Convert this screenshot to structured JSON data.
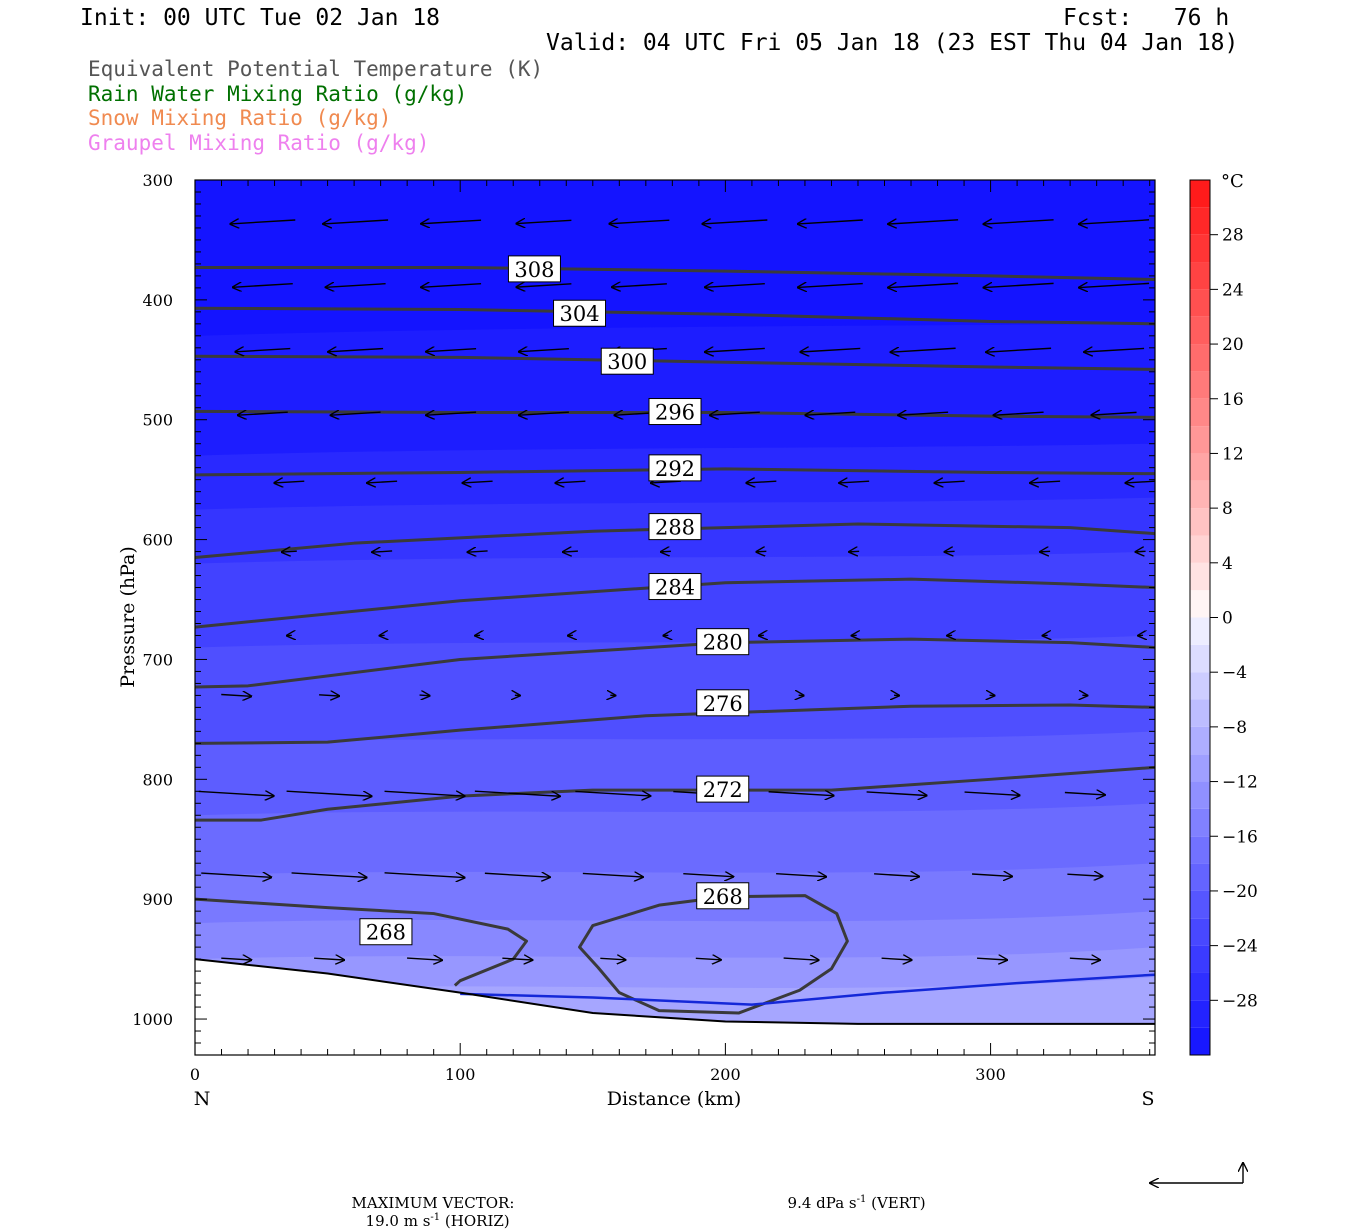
{
  "header": {
    "init": "Init: 00 UTC Tue 02 Jan 18",
    "fcst": "Fcst:   76 h",
    "valid": "Valid: 04 UTC Fri 05 Jan 18 (23 EST Thu 04 Jan 18)"
  },
  "legend": [
    {
      "label": "Equivalent Potential Temperature (K)",
      "color": "#555555"
    },
    {
      "label": "Rain Water Mixing Ratio (g/kg)",
      "color": "#007000"
    },
    {
      "label": "Snow Mixing Ratio (g/kg)",
      "color": "#f08a50"
    },
    {
      "label": "Graupel Mixing Ratio (g/kg)",
      "color": "#ee80ee"
    }
  ],
  "footer": {
    "max_vector_label": "MAXIMUM VECTOR:",
    "horiz_value": "19.0 m s",
    "horiz_unit_suffix": " (HORIZ)",
    "vert_value": "9.4 dPa s",
    "vert_unit_suffix": " (VERT)",
    "superscript": "-1"
  },
  "chart_data": {
    "type": "cross-section",
    "xlabel": "Distance (km)",
    "ylabel": "Pressure (hPa)",
    "xlim": [
      0,
      362
    ],
    "ylim": [
      1030,
      300
    ],
    "x_ticks": [
      0,
      100,
      200,
      300
    ],
    "y_ticks": [
      300,
      400,
      500,
      600,
      700,
      800,
      900,
      1000
    ],
    "x_end_labels": {
      "left": "N",
      "right": "S"
    },
    "colorbar": {
      "unit": "°C",
      "labels": [
        "28",
        "24",
        "20",
        "16",
        "12",
        "8",
        "4",
        "0",
        "−4",
        "−8",
        "−12",
        "−16",
        "−20",
        "−24",
        "−28"
      ],
      "label_values": [
        28,
        24,
        20,
        16,
        12,
        8,
        4,
        0,
        -4,
        -8,
        -12,
        -16,
        -20,
        -24,
        -28
      ],
      "range": [
        -32,
        32
      ],
      "step": 2
    },
    "theta_e_contours": [
      {
        "label": "308",
        "label_at": [
          128,
          375
        ],
        "points": [
          [
            0,
            373
          ],
          [
            100,
            373
          ],
          [
            200,
            376
          ],
          [
            300,
            380
          ],
          [
            362,
            383
          ]
        ]
      },
      {
        "label": "304",
        "label_at": [
          145,
          412
        ],
        "points": [
          [
            0,
            407
          ],
          [
            100,
            408
          ],
          [
            200,
            412
          ],
          [
            300,
            418
          ],
          [
            362,
            420
          ]
        ]
      },
      {
        "label": "300",
        "label_at": [
          163,
          452
        ],
        "points": [
          [
            0,
            447
          ],
          [
            100,
            448
          ],
          [
            200,
            452
          ],
          [
            300,
            456
          ],
          [
            362,
            458
          ]
        ]
      },
      {
        "label": "296",
        "label_at": [
          181,
          494
        ],
        "points": [
          [
            0,
            493
          ],
          [
            100,
            494
          ],
          [
            200,
            494
          ],
          [
            300,
            497
          ],
          [
            362,
            498
          ]
        ]
      },
      {
        "label": "292",
        "label_at": [
          181,
          541
        ],
        "points": [
          [
            0,
            546
          ],
          [
            100,
            544
          ],
          [
            200,
            541
          ],
          [
            300,
            544
          ],
          [
            362,
            545
          ]
        ]
      },
      {
        "label": "288",
        "label_at": [
          181,
          590
        ],
        "points": [
          [
            0,
            615
          ],
          [
            60,
            603
          ],
          [
            150,
            593
          ],
          [
            250,
            587
          ],
          [
            330,
            590
          ],
          [
            362,
            595
          ]
        ]
      },
      {
        "label": "284",
        "label_at": [
          181,
          640
        ],
        "points": [
          [
            0,
            673
          ],
          [
            100,
            651
          ],
          [
            200,
            636
          ],
          [
            270,
            633
          ],
          [
            330,
            637
          ],
          [
            362,
            640
          ]
        ]
      },
      {
        "label": "280",
        "label_at": [
          199,
          686
        ],
        "points": [
          [
            0,
            723
          ],
          [
            20,
            722
          ],
          [
            100,
            700
          ],
          [
            200,
            686
          ],
          [
            270,
            683
          ],
          [
            330,
            686
          ],
          [
            362,
            690
          ]
        ]
      },
      {
        "label": "276",
        "label_at": [
          199,
          737
        ],
        "points": [
          [
            0,
            770
          ],
          [
            50,
            769
          ],
          [
            100,
            759
          ],
          [
            170,
            747
          ],
          [
            270,
            739
          ],
          [
            330,
            738
          ],
          [
            362,
            740
          ]
        ]
      },
      {
        "label": "272",
        "label_at": [
          199,
          809
        ],
        "points": [
          [
            0,
            834
          ],
          [
            25,
            834
          ],
          [
            50,
            825
          ],
          [
            100,
            814
          ],
          [
            150,
            809
          ],
          [
            200,
            809
          ],
          [
            240,
            809
          ],
          [
            300,
            800
          ],
          [
            362,
            790
          ]
        ]
      },
      {
        "label": "268",
        "label_at": [
          72,
          928
        ],
        "points": [
          [
            0,
            900
          ],
          [
            50,
            907
          ],
          [
            90,
            912
          ],
          [
            118,
            925
          ],
          [
            125,
            935
          ],
          [
            120,
            950
          ],
          [
            100,
            968
          ],
          [
            98,
            972
          ]
        ]
      },
      {
        "label": "268",
        "label_at": [
          199,
          898
        ],
        "points": [
          [
            152,
            957
          ],
          [
            145,
            940
          ],
          [
            150,
            922
          ],
          [
            175,
            905
          ],
          [
            200,
            898
          ],
          [
            230,
            897
          ],
          [
            242,
            912
          ],
          [
            246,
            935
          ],
          [
            240,
            958
          ],
          [
            228,
            976
          ],
          [
            205,
            995
          ],
          [
            175,
            993
          ],
          [
            160,
            978
          ],
          [
            152,
            957
          ]
        ]
      }
    ],
    "freezing_line": {
      "color": "#1428d8",
      "points": [
        [
          100,
          979
        ],
        [
          150,
          982
        ],
        [
          210,
          988
        ],
        [
          260,
          978
        ],
        [
          310,
          970
        ],
        [
          362,
          963
        ]
      ]
    },
    "terrain": {
      "points": [
        [
          0,
          950
        ],
        [
          50,
          962
        ],
        [
          100,
          978
        ],
        [
          150,
          995
        ],
        [
          200,
          1002
        ],
        [
          250,
          1004
        ],
        [
          300,
          1004
        ],
        [
          362,
          1004
        ]
      ]
    },
    "wind_rows": [
      {
        "p": 335,
        "arrows": [
          {
            "x": 15,
            "u": -13
          },
          {
            "x": 50,
            "u": -13
          },
          {
            "x": 86,
            "u": -12
          },
          {
            "x": 121,
            "u": -11
          },
          {
            "x": 157,
            "u": -12
          },
          {
            "x": 193,
            "u": -13
          },
          {
            "x": 229,
            "u": -13
          },
          {
            "x": 264,
            "u": -14
          },
          {
            "x": 300,
            "u": -14
          },
          {
            "x": 336,
            "u": -14
          }
        ]
      },
      {
        "p": 388,
        "arrows": [
          {
            "x": 15,
            "u": -12
          },
          {
            "x": 50,
            "u": -12
          },
          {
            "x": 86,
            "u": -12
          },
          {
            "x": 121,
            "u": -11
          },
          {
            "x": 157,
            "u": -11
          },
          {
            "x": 193,
            "u": -12
          },
          {
            "x": 229,
            "u": -13
          },
          {
            "x": 264,
            "u": -14
          },
          {
            "x": 300,
            "u": -14
          },
          {
            "x": 336,
            "u": -14
          }
        ]
      },
      {
        "p": 442,
        "arrows": [
          {
            "x": 15,
            "u": -11
          },
          {
            "x": 50,
            "u": -11
          },
          {
            "x": 86,
            "u": -10
          },
          {
            "x": 121,
            "u": -10
          },
          {
            "x": 157,
            "u": -11
          },
          {
            "x": 193,
            "u": -12
          },
          {
            "x": 229,
            "u": -12
          },
          {
            "x": 264,
            "u": -13
          },
          {
            "x": 300,
            "u": -13
          },
          {
            "x": 336,
            "u": -12
          }
        ]
      },
      {
        "p": 495,
        "arrows": [
          {
            "x": 15,
            "u": -10
          },
          {
            "x": 50,
            "u": -10
          },
          {
            "x": 86,
            "u": -10
          },
          {
            "x": 121,
            "u": -10
          },
          {
            "x": 157,
            "u": -10
          },
          {
            "x": 193,
            "u": -10
          },
          {
            "x": 229,
            "u": -10
          },
          {
            "x": 264,
            "u": -10
          },
          {
            "x": 300,
            "u": -10
          },
          {
            "x": 336,
            "u": -9
          }
        ]
      },
      {
        "p": 552,
        "arrows": [
          {
            "x": 25,
            "u": -6
          },
          {
            "x": 60,
            "u": -6
          },
          {
            "x": 96,
            "u": -6
          },
          {
            "x": 131,
            "u": -6
          },
          {
            "x": 167,
            "u": -6
          },
          {
            "x": 203,
            "u": -6
          },
          {
            "x": 238,
            "u": -6
          },
          {
            "x": 274,
            "u": -6
          },
          {
            "x": 310,
            "u": -6
          },
          {
            "x": 346,
            "u": -6
          }
        ]
      },
      {
        "p": 610,
        "arrows": [
          {
            "x": 25,
            "u": -3
          },
          {
            "x": 60,
            "u": -4
          },
          {
            "x": 96,
            "u": -4
          },
          {
            "x": 131,
            "u": -3
          },
          {
            "x": 167,
            "u": -2
          },
          {
            "x": 203,
            "u": -2
          },
          {
            "x": 238,
            "u": -2
          },
          {
            "x": 274,
            "u": -2
          },
          {
            "x": 310,
            "u": -2
          },
          {
            "x": 346,
            "u": -2
          }
        ]
      },
      {
        "p": 680,
        "arrows": [
          {
            "x": 25,
            "u": -1
          },
          {
            "x": 60,
            "u": -1
          },
          {
            "x": 96,
            "u": -1
          },
          {
            "x": 131,
            "u": -1
          },
          {
            "x": 167,
            "u": -1
          },
          {
            "x": 203,
            "u": -1
          },
          {
            "x": 238,
            "u": -1
          },
          {
            "x": 274,
            "u": -1
          },
          {
            "x": 310,
            "u": -1
          },
          {
            "x": 346,
            "u": -1
          }
        ]
      },
      {
        "p": 730,
        "arrows": [
          {
            "x": 5,
            "u": 6
          },
          {
            "x": 40,
            "u": 4
          },
          {
            "x": 76,
            "u": 2
          },
          {
            "x": 111,
            "u": 1
          },
          {
            "x": 147,
            "u": 1
          },
          {
            "x": 183,
            "u": 1
          },
          {
            "x": 218,
            "u": 1
          },
          {
            "x": 254,
            "u": 1
          },
          {
            "x": 290,
            "u": 1
          },
          {
            "x": 325,
            "u": 1
          }
        ]
      },
      {
        "p": 812,
        "arrows": [
          {
            "x": 5,
            "u": 15
          },
          {
            "x": 40,
            "u": 17
          },
          {
            "x": 76,
            "u": 16
          },
          {
            "x": 111,
            "u": 17
          },
          {
            "x": 147,
            "u": 15
          },
          {
            "x": 183,
            "u": 14
          },
          {
            "x": 218,
            "u": 13
          },
          {
            "x": 254,
            "u": 12
          },
          {
            "x": 290,
            "u": 11
          },
          {
            "x": 325,
            "u": 8
          }
        ]
      },
      {
        "p": 880,
        "arrows": [
          {
            "x": 5,
            "u": 14
          },
          {
            "x": 40,
            "u": 15
          },
          {
            "x": 76,
            "u": 16
          },
          {
            "x": 111,
            "u": 13
          },
          {
            "x": 147,
            "u": 12
          },
          {
            "x": 183,
            "u": 10
          },
          {
            "x": 218,
            "u": 10
          },
          {
            "x": 254,
            "u": 9
          },
          {
            "x": 290,
            "u": 8
          },
          {
            "x": 325,
            "u": 7
          }
        ]
      },
      {
        "p": 950,
        "arrows": [
          {
            "x": 5,
            "u": 6
          },
          {
            "x": 40,
            "u": 6
          },
          {
            "x": 76,
            "u": 7
          },
          {
            "x": 111,
            "u": 6
          },
          {
            "x": 147,
            "u": 5
          },
          {
            "x": 183,
            "u": 5
          },
          {
            "x": 218,
            "u": 7
          },
          {
            "x": 254,
            "u": 6
          },
          {
            "x": 290,
            "u": 6
          },
          {
            "x": 325,
            "u": 6
          }
        ]
      }
    ]
  }
}
